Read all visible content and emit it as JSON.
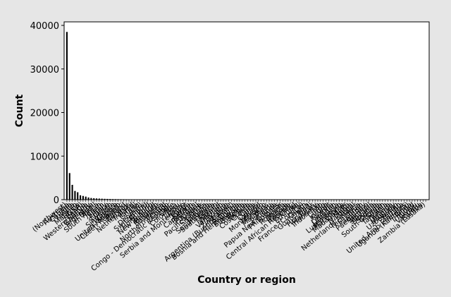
{
  "chart_data": {
    "type": "bar",
    "xlabel": "Country or region",
    "ylabel": "Count",
    "ylim": [
      0,
      40000
    ],
    "yticks": [
      0,
      10000,
      20000,
      30000,
      40000
    ],
    "grid": false,
    "legend": "none",
    "colors": {
      "bar": "#000000",
      "frame_bg": "#e6e6e6",
      "plot_bg": "#ffffff"
    },
    "categories": [
      "(Northwest)",
      "Australia",
      "Canada",
      "India",
      "Mexico",
      "Malaysia",
      "(USA)",
      "Nigeria",
      "Western Samoa",
      "Germany",
      "Argentina",
      "Brazil",
      "South Africa",
      "Japan",
      "Spain",
      "Italy",
      "France",
      "Sweden",
      "Singapore",
      "Greece",
      "United Kingdom",
      "Czech Republic",
      "Poland",
      "Norway",
      "Netherlands",
      "Ireland",
      "Israel",
      "Ghana",
      "(UK)",
      "Denmark",
      "Switzerland",
      "Finland",
      "Hong Kong",
      "New Zealand",
      "Belgium",
      "Bahamas",
      "Austria",
      "Northern Ireland",
      "Congo",
      "Congo - Democratic Republic",
      "Chile",
      "Colombia",
      "Peru",
      "Turkey",
      "Serbia and Montenegro",
      "Egypt",
      "Kenya",
      "Cameroon",
      "Pakistan",
      "Portugal",
      "Algeria",
      "Pacific Islands",
      "Sri Lanka",
      "Jamaica",
      "Saudi Arabia",
      "South Korea",
      "Taiwan",
      "Thailand",
      "Vietnam",
      "Venezuela",
      "Ukraine",
      "Zimbabwe",
      "Argentina (Buenos Aires)",
      "Armenia",
      "Bosnia and Herzegovina",
      "Botswana",
      "Bulgaria",
      "Bolivia",
      "Costa Rica",
      "Croatia",
      "Cuba",
      "Cyprus",
      "Iceland",
      "Montenegro",
      "Morocco",
      "Mauritius",
      "Palau",
      "Panama",
      "Papua New Guinea",
      "Philippines",
      "Qatar",
      "Romania",
      "Russia",
      "Rwanda",
      "Central African Republic",
      "Chad",
      "Ethiopia",
      "Fiji",
      "France (Corsica)",
      "Guam",
      "Guatemala",
      "Haiti",
      "Honduras",
      "Hungary",
      "Indonesia",
      "Iran",
      "Iraq",
      "Jordan",
      "Kuwait",
      "Latvia",
      "Lebanon",
      "Lithuania",
      "Luxembourg",
      "Macedonia",
      "Madagascar",
      "Malta",
      "Namibia",
      "Nepal",
      "Netherlands Antilles",
      "Nicaragua",
      "Oman",
      "Paraguay",
      "Puerto Rico",
      "Senegal",
      "Slovakia",
      "Slovenia",
      "Somalia",
      "South Georgia",
      "Sudan",
      "Tanzania",
      "Tunisia",
      "Uganda",
      "Uruguay",
      "Uzbekistan",
      "Yemen",
      "Zambia",
      "United Arab Emirates",
      "Uganda (Kampala)",
      "Tonga",
      "Trinidad",
      "Tuvalu",
      "Vanuatu",
      "Samoa",
      "Zambia (Lusaka)"
    ],
    "values": [
      38500,
      6100,
      3400,
      2000,
      1700,
      1000,
      850,
      700,
      500,
      380,
      320,
      280,
      250,
      220,
      190,
      170,
      150,
      130,
      120,
      110,
      100,
      95,
      90,
      85,
      80,
      75,
      70,
      65,
      60,
      55,
      52,
      50,
      48,
      46,
      44,
      42,
      40,
      38,
      36,
      34,
      32,
      30,
      28,
      27,
      26,
      25,
      24,
      23,
      22,
      21,
      20,
      19,
      18,
      17,
      16,
      15,
      15,
      14,
      14,
      13,
      13,
      12,
      12,
      11,
      11,
      10,
      10,
      10,
      9,
      9,
      9,
      8,
      8,
      8,
      8,
      7,
      7,
      7,
      7,
      6,
      6,
      6,
      6,
      6,
      5,
      5,
      5,
      5,
      5,
      5,
      4,
      4,
      4,
      4,
      4,
      4,
      4,
      3,
      3,
      3,
      3,
      3,
      3,
      3,
      3,
      3,
      2,
      2,
      2,
      2,
      2,
      2,
      2,
      2,
      2,
      2,
      2,
      2,
      2,
      1,
      1,
      1,
      1,
      1,
      1,
      1,
      1,
      1,
      1,
      1,
      1,
      1,
      1,
      1
    ]
  }
}
